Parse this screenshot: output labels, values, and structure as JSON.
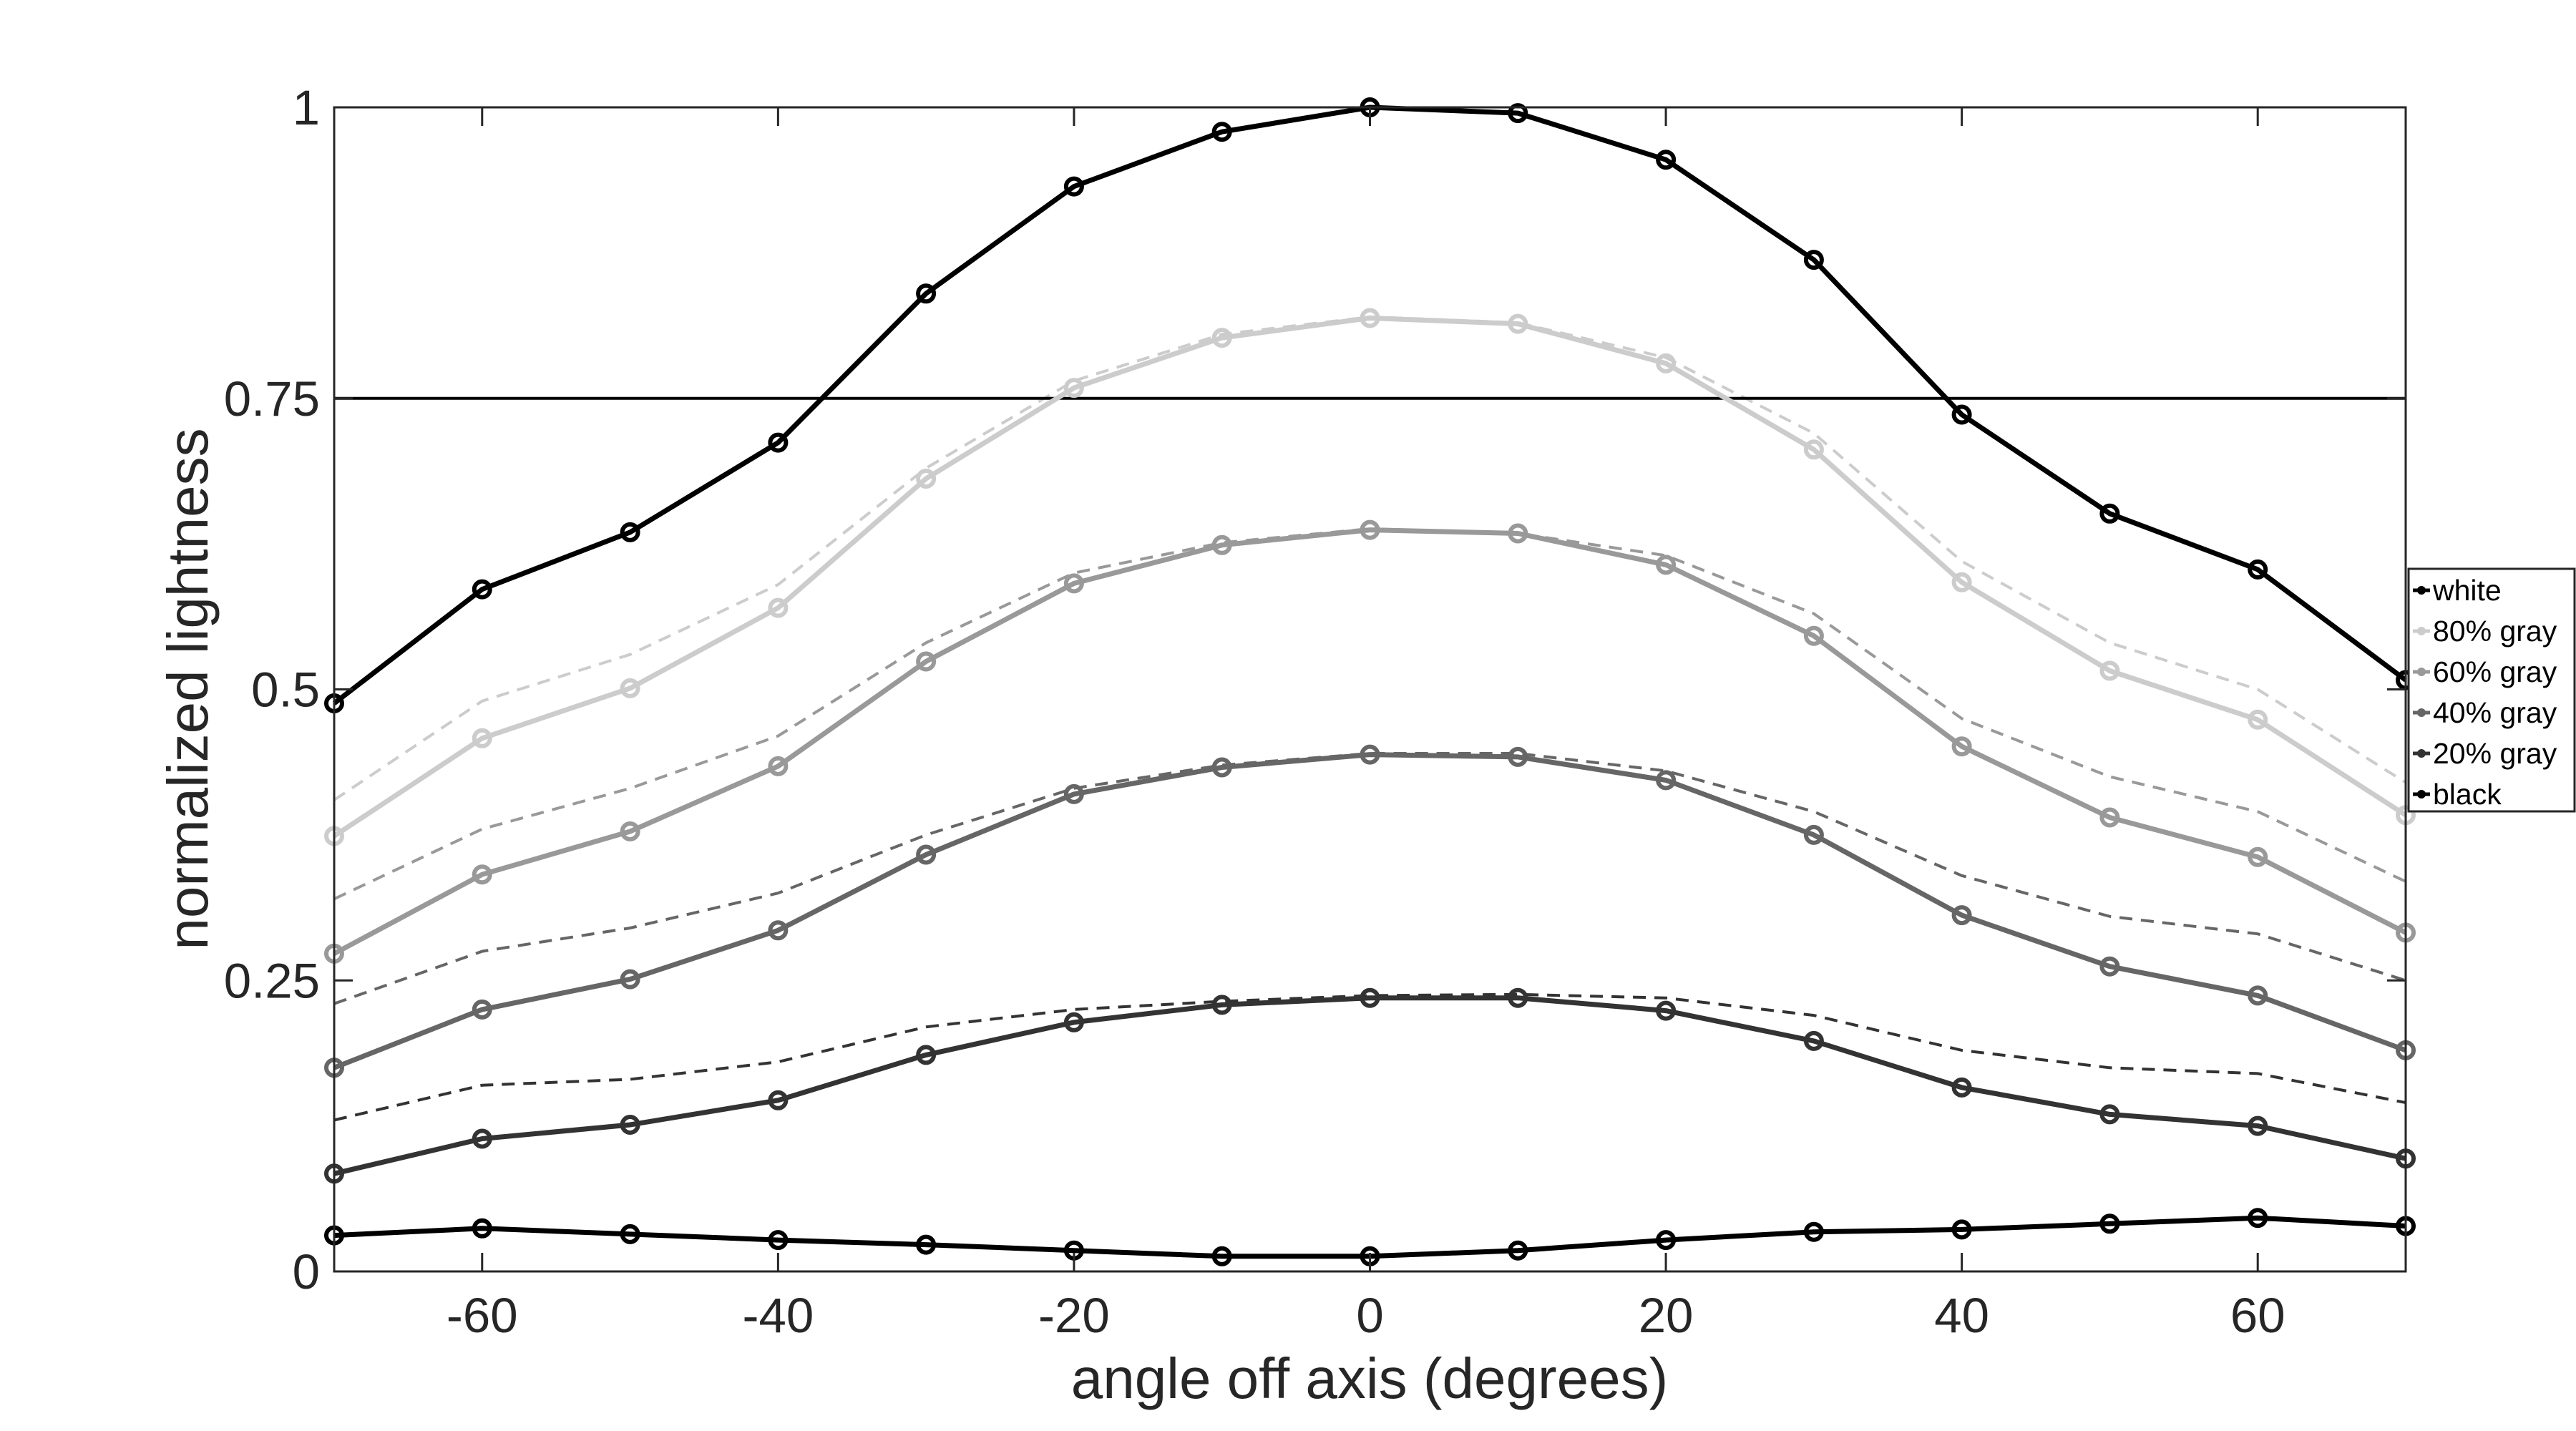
{
  "chart_data": {
    "type": "line",
    "xlabel": "angle off axis (degrees)",
    "ylabel": "normalized lightness",
    "xlim": [
      -70,
      70
    ],
    "ylim": [
      0,
      1
    ],
    "xticks": [
      -60,
      -40,
      -20,
      0,
      20,
      40,
      60
    ],
    "xtick_labels": [
      "-60",
      "-40",
      "-20",
      "0",
      "20",
      "40",
      "60"
    ],
    "yticks": [
      0,
      0.25,
      0.5,
      0.75,
      1
    ],
    "ytick_labels": [
      "0",
      "0.25",
      "0.5",
      "0.75",
      "1"
    ],
    "reference_line": 0.75,
    "grid": false,
    "legend_position": "right",
    "x": [
      -70,
      -60,
      -50,
      -40,
      -30,
      -20,
      -10,
      0,
      10,
      20,
      30,
      40,
      50,
      60,
      70
    ],
    "series": [
      {
        "name": "white",
        "color": "#000000",
        "values": [
          0.488,
          0.586,
          0.635,
          0.712,
          0.84,
          0.932,
          0.979,
          1.0,
          0.995,
          0.955,
          0.869,
          0.736,
          0.651,
          0.603,
          0.508
        ]
      },
      {
        "name": "80% gray",
        "color": "#cccccc",
        "values": [
          0.374,
          0.458,
          0.501,
          0.57,
          0.681,
          0.759,
          0.802,
          0.819,
          0.814,
          0.78,
          0.706,
          0.592,
          0.516,
          0.474,
          0.392
        ]
      },
      {
        "name": "60% gray",
        "color": "#999999",
        "values": [
          0.273,
          0.341,
          0.378,
          0.434,
          0.524,
          0.591,
          0.624,
          0.637,
          0.634,
          0.607,
          0.546,
          0.451,
          0.39,
          0.356,
          0.291
        ]
      },
      {
        "name": "40% gray",
        "color": "#666666",
        "values": [
          0.175,
          0.225,
          0.251,
          0.293,
          0.358,
          0.41,
          0.433,
          0.444,
          0.442,
          0.422,
          0.375,
          0.306,
          0.262,
          0.237,
          0.19
        ]
      },
      {
        "name": "20% gray",
        "color": "#333333",
        "values": [
          0.084,
          0.114,
          0.126,
          0.147,
          0.186,
          0.214,
          0.229,
          0.235,
          0.235,
          0.224,
          0.198,
          0.158,
          0.135,
          0.125,
          0.097
        ]
      },
      {
        "name": "black",
        "color": "#000000",
        "values": [
          0.031,
          0.037,
          0.032,
          0.027,
          0.023,
          0.018,
          0.013,
          0.013,
          0.018,
          0.027,
          0.034,
          0.036,
          0.041,
          0.046,
          0.039
        ]
      }
    ],
    "reference_series": [
      {
        "color": "#cccccc",
        "values": [
          0.405,
          0.49,
          0.53,
          0.59,
          0.69,
          0.765,
          0.805,
          0.82,
          0.815,
          0.785,
          0.72,
          0.61,
          0.54,
          0.5,
          0.42
        ]
      },
      {
        "color": "#999999",
        "values": [
          0.32,
          0.38,
          0.415,
          0.46,
          0.54,
          0.6,
          0.626,
          0.638,
          0.634,
          0.615,
          0.565,
          0.475,
          0.425,
          0.395,
          0.335
        ]
      },
      {
        "color": "#666666",
        "values": [
          0.23,
          0.275,
          0.295,
          0.325,
          0.375,
          0.415,
          0.435,
          0.445,
          0.445,
          0.43,
          0.395,
          0.34,
          0.305,
          0.29,
          0.25
        ]
      },
      {
        "color": "#333333",
        "values": [
          0.13,
          0.16,
          0.165,
          0.18,
          0.21,
          0.225,
          0.232,
          0.237,
          0.238,
          0.235,
          0.22,
          0.19,
          0.175,
          0.17,
          0.145
        ]
      }
    ]
  }
}
